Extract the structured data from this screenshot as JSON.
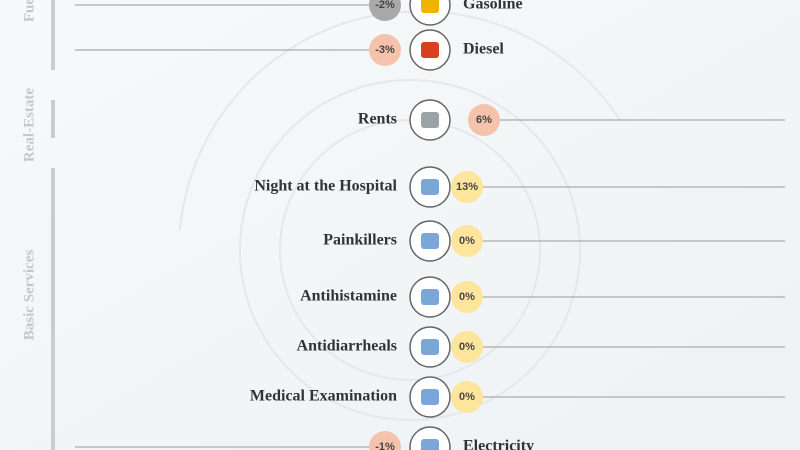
{
  "sections": [
    {
      "title": "Fuel",
      "items": [
        {
          "label": "Gasoline",
          "change": "-2%",
          "y": 0
        },
        {
          "label": "Diesel",
          "change": "-3%",
          "y": 0
        }
      ]
    },
    {
      "title": "Real-Estate",
      "items": [
        {
          "label": "Rents",
          "change": "6%"
        }
      ]
    },
    {
      "title": "Basic Services",
      "items": [
        {
          "label": "Night at the Hospital",
          "change": "13%"
        },
        {
          "label": "Painkillers",
          "change": "0%"
        },
        {
          "label": "Antihistamine",
          "change": "0%"
        },
        {
          "label": "Antidiarrheals",
          "change": "0%"
        },
        {
          "label": "Medical Examination",
          "change": "0%"
        },
        {
          "label": "Electricity",
          "change": "-1%"
        }
      ]
    }
  ]
}
